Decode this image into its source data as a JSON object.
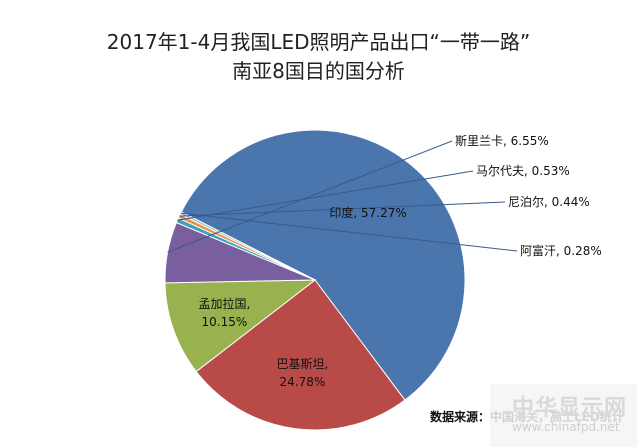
{
  "chart_data": {
    "type": "pie",
    "title": "2017年1-4月我国LED照明产品出口“一带一路”",
    "subtitle": "南亚8国目的国分析",
    "slices": [
      {
        "label": "印度",
        "value": 57.27,
        "text": "印度, 57.27%",
        "color": "#4a76ad"
      },
      {
        "label": "巴基斯坦",
        "value": 24.78,
        "text": "巴基斯坦, 24.78%",
        "color": "#b84b47"
      },
      {
        "label": "孟加拉国",
        "value": 10.15,
        "text": "孟加拉国, 10.15%",
        "color": "#97b24f"
      },
      {
        "label": "斯里兰卡",
        "value": 6.55,
        "text": "斯里兰卡, 6.55%",
        "color": "#7a5f9e"
      },
      {
        "label": "马尔代夫",
        "value": 0.53,
        "text": "马尔代夫, 0.53%",
        "color": "#3f9fbf"
      },
      {
        "label": "尼泊尔",
        "value": 0.44,
        "text": "尼泊尔, 0.44%",
        "color": "#e8913e"
      },
      {
        "label": "阿富汗",
        "value": 0.28,
        "text": "阿富汗, 0.28%",
        "color": "#9bb1d6"
      }
    ],
    "legend": "none"
  },
  "source_text": "数据来源：中国海关，高工LED统计",
  "watermark": {
    "top": "中华显示网",
    "bottom": "www.chinafpd.net"
  }
}
